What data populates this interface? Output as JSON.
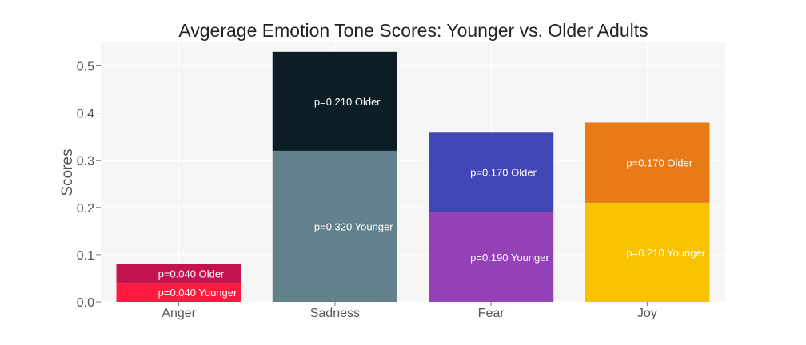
{
  "chart_data": {
    "type": "bar",
    "stacked": true,
    "title": "Avgerage Emotion Tone Scores: Younger vs. Older Adults",
    "xlabel": "",
    "ylabel": "Scores",
    "ylim": [
      0,
      0.55
    ],
    "yticks": [
      "0.0",
      "0.1",
      "0.2",
      "0.3",
      "0.4",
      "0.5"
    ],
    "grid": true,
    "background": "#f6f6f6",
    "categories": [
      "Anger",
      "Sadness",
      "Fear",
      "Joy"
    ],
    "series": [
      {
        "values": [
          0.04,
          0.32,
          0.19,
          0.21
        ],
        "labels": [
          "p=0.040 Younger",
          "p=0.320 Younger",
          "p=0.190 Younger",
          "p=0.210 Younger"
        ],
        "colors": [
          "#ff1a40",
          "#62818c",
          "#9542b8",
          "#f9c200"
        ]
      },
      {
        "values": [
          0.04,
          0.21,
          0.17,
          0.17
        ],
        "labels": [
          "p=0.040 Older",
          "p=0.210 Older",
          "p=0.170 Older",
          "p=0.170 Older"
        ],
        "colors": [
          "#c2124f",
          "#0d1d25",
          "#4247b5",
          "#e97b16"
        ]
      }
    ]
  }
}
